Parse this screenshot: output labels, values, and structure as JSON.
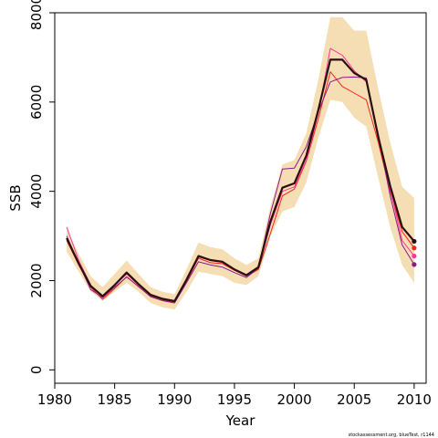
{
  "chart_data": {
    "type": "line",
    "xlabel": "Year",
    "ylabel": "SSB",
    "xlim": [
      1980,
      2011
    ],
    "ylim": [
      -300,
      8000
    ],
    "x_ticks": [
      1980,
      1985,
      1990,
      1995,
      2000,
      2005,
      2010
    ],
    "y_ticks": [
      0,
      2000,
      4000,
      6000,
      8000
    ],
    "grid": false,
    "legend": "none",
    "credit": "stockassessment.org, blueTest, r1144",
    "x": [
      1981,
      1982,
      1983,
      1984,
      1985,
      1986,
      1987,
      1988,
      1989,
      1990,
      1991,
      1992,
      1993,
      1994,
      1995,
      1996,
      1997,
      1998,
      1999,
      2000,
      2001,
      2002,
      2003,
      2004,
      2005,
      2006,
      2007,
      2008,
      2009,
      2010
    ],
    "band": {
      "color": "#f5deb3",
      "upper": [
        3150,
        2600,
        2100,
        1850,
        2150,
        2450,
        2150,
        1850,
        1750,
        1700,
        2250,
        2850,
        2750,
        2700,
        2500,
        2350,
        2500,
        3650,
        4600,
        4700,
        5300,
        6500,
        7900,
        7900,
        7600,
        7600,
        6300,
        5100,
        4100,
        3850
      ],
      "lower": [
        2650,
        2200,
        1750,
        1550,
        1750,
        1950,
        1750,
        1500,
        1400,
        1350,
        1750,
        2200,
        2150,
        2100,
        1950,
        1900,
        2100,
        3000,
        3550,
        3650,
        4200,
        5200,
        6050,
        6000,
        5650,
        5450,
        4300,
        3200,
        2350,
        1950
      ]
    },
    "series": [
      {
        "color": "#ff2020",
        "values": [
          2900,
          2350,
          1850,
          1580,
          1820,
          2090,
          1860,
          1650,
          1560,
          1520,
          1980,
          2500,
          2400,
          2380,
          2230,
          2100,
          2250,
          3050,
          3900,
          4050,
          4680,
          5620,
          6680,
          6350,
          6200,
          6050,
          5100,
          4000,
          3100,
          2730
        ]
      },
      {
        "color": "#ff3399",
        "values": [
          3200,
          2450,
          1900,
          1650,
          1900,
          2150,
          1900,
          1680,
          1600,
          1550,
          2000,
          2530,
          2450,
          2420,
          2260,
          2110,
          2300,
          3250,
          4000,
          4100,
          4700,
          5750,
          7200,
          7050,
          6700,
          6450,
          5300,
          4050,
          2900,
          2550
        ]
      },
      {
        "color": "#8b1a8b",
        "values": [
          3000,
          2380,
          1800,
          1620,
          1850,
          2080,
          1870,
          1640,
          1550,
          1500,
          1950,
          2420,
          2350,
          2300,
          2180,
          2070,
          2280,
          3500,
          4500,
          4520,
          5000,
          5780,
          6450,
          6550,
          6560,
          6540,
          5250,
          3900,
          2800,
          2360
        ]
      },
      {
        "color": "#2b0f0f",
        "values": [
          2950,
          2380,
          1880,
          1650,
          1900,
          2180,
          1920,
          1680,
          1590,
          1540,
          2020,
          2550,
          2460,
          2420,
          2250,
          2120,
          2300,
          3320,
          4080,
          4180,
          4800,
          5820,
          6950,
          6950,
          6650,
          6500,
          5220,
          4120,
          3200,
          2880
        ]
      }
    ],
    "end_points": [
      {
        "x": 2010,
        "y": 2880,
        "color": "#2b0f0f"
      },
      {
        "x": 2010,
        "y": 2730,
        "color": "#ff2020"
      },
      {
        "x": 2010,
        "y": 2550,
        "color": "#ff3399"
      },
      {
        "x": 2010,
        "y": 2360,
        "color": "#8b1a8b"
      }
    ]
  }
}
